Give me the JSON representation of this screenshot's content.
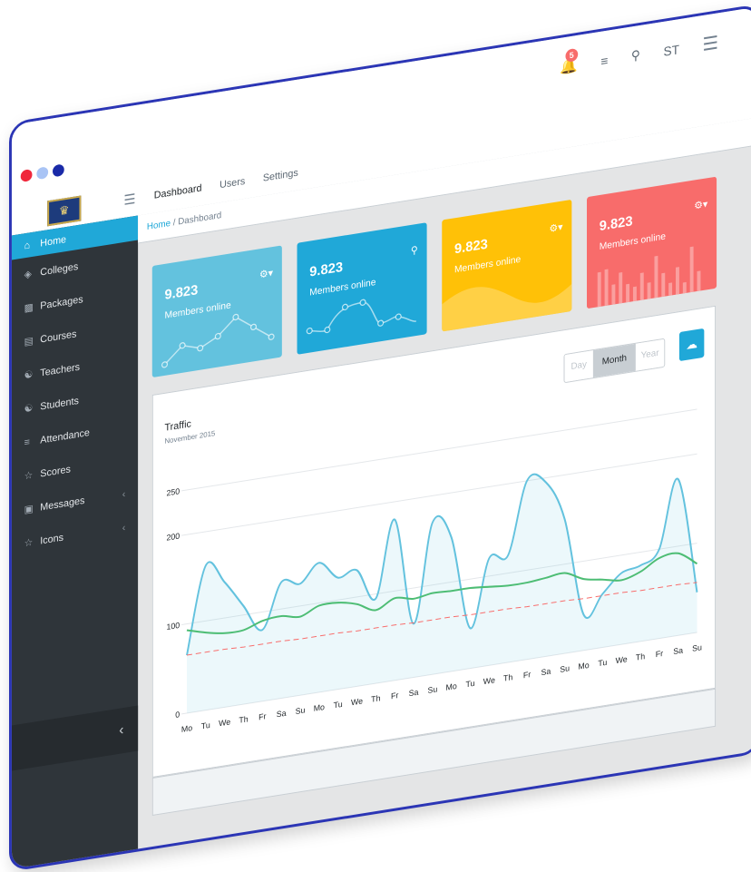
{
  "header": {
    "notification_count": "5",
    "user_initials": "ST",
    "nav": [
      "Dashboard",
      "Users",
      "Settings"
    ]
  },
  "sidebar": {
    "items": [
      {
        "label": "Home",
        "icon": "home-icon",
        "active": true
      },
      {
        "label": "Colleges",
        "icon": "graduation-cap-icon"
      },
      {
        "label": "Packages",
        "icon": "sitemap-icon"
      },
      {
        "label": "Courses",
        "icon": "book-icon"
      },
      {
        "label": "Teachers",
        "icon": "teacher-icon"
      },
      {
        "label": "Students",
        "icon": "student-icon"
      },
      {
        "label": "Attendance",
        "icon": "list-icon"
      },
      {
        "label": "Scores",
        "icon": "star-icon"
      },
      {
        "label": "Messages",
        "icon": "message-icon",
        "chevron": true
      },
      {
        "label": "Icons",
        "icon": "star-icon",
        "chevron": true
      }
    ]
  },
  "breadcrumb": {
    "home": "Home",
    "separator": "/",
    "current": "Dashboard"
  },
  "cards": [
    {
      "value": "9.823",
      "label": "Members online",
      "color": "#63c2de",
      "tool": "gear-icon"
    },
    {
      "value": "9.823",
      "label": "Members online",
      "color": "#20a8d8",
      "tool": "location-pin-icon"
    },
    {
      "value": "9.823",
      "label": "Members online",
      "color": "#ffc107",
      "tool": "gear-icon"
    },
    {
      "value": "9.823",
      "label": "Members online",
      "color": "#f86c6b",
      "tool": "gear-icon"
    }
  ],
  "traffic": {
    "title": "Traffic",
    "subtitle": "November 2015",
    "periods": [
      "Day",
      "Month",
      "Year"
    ],
    "selected_period": "Month"
  },
  "chart_data": {
    "type": "line",
    "title": "Traffic",
    "ylim": [
      0,
      250
    ],
    "yticks": [
      0,
      100,
      200,
      250
    ],
    "x": [
      "Mo",
      "Tu",
      "We",
      "Th",
      "Fr",
      "Sa",
      "Su",
      "Mo",
      "Tu",
      "We",
      "Th",
      "Fr",
      "Sa",
      "Su",
      "Mo",
      "Tu",
      "We",
      "Th",
      "Fr",
      "Sa",
      "Su",
      "Mo",
      "Tu",
      "We",
      "Th",
      "Fr",
      "Sa",
      "Su"
    ],
    "series": [
      {
        "color": "#63c2de",
        "fill": true,
        "values": [
          65,
          162,
          140,
          110,
          80,
          130,
          125,
          145,
          125,
          130,
          95,
          180,
          60,
          170,
          150,
          45,
          120,
          120,
          200,
          195,
          150,
          40,
          60,
          80,
          85,
          100,
          175,
          45
        ]
      },
      {
        "color": "#4dbd74",
        "values": [
          93,
          87,
          83,
          83,
          90,
          92,
          88,
          97,
          97,
          92,
          82,
          92,
          88,
          91,
          90,
          90,
          88,
          86,
          86,
          88,
          90,
          80,
          76,
          72,
          78,
          90,
          92,
          77
        ]
      },
      {
        "color": "#f86c6b",
        "dashed": true,
        "values": [
          65,
          65,
          65,
          64,
          64,
          64,
          63,
          63,
          63,
          62,
          62,
          62,
          61,
          61,
          61,
          60,
          60,
          60,
          59,
          59,
          59,
          58,
          58,
          58,
          57,
          57,
          57,
          56
        ]
      }
    ]
  }
}
